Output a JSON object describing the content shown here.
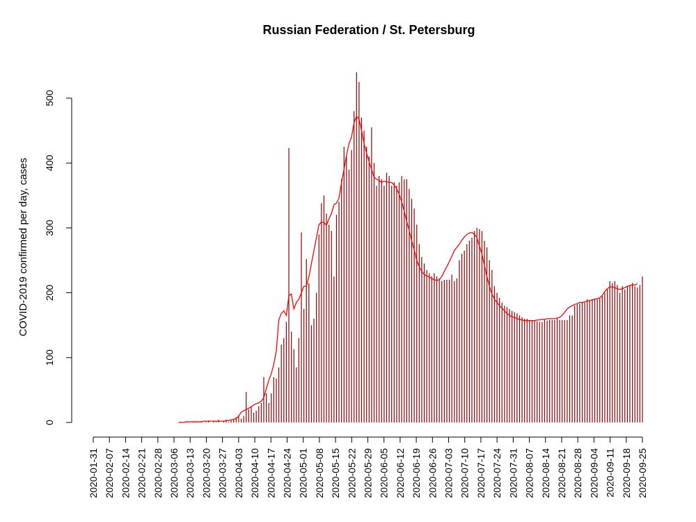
{
  "chart_data": {
    "type": "bar",
    "title": "Russian Federation / St. Petersburg",
    "xlabel": "",
    "ylabel": "COVID-2019 confirmed per day, cases",
    "ylim": [
      0,
      560
    ],
    "y_ticks": [
      0,
      100,
      200,
      300,
      400,
      500
    ],
    "x_start": "2020-01-31",
    "x_end": "2020-09-25",
    "x_tick_labels": [
      "2020-01-31",
      "2020-02-07",
      "2020-02-14",
      "2020-02-21",
      "2020-02-28",
      "2020-03-06",
      "2020-03-13",
      "2020-03-20",
      "2020-03-27",
      "2020-04-03",
      "2020-04-10",
      "2020-04-17",
      "2020-04-24",
      "2020-05-01",
      "2020-05-08",
      "2020-05-15",
      "2020-05-22",
      "2020-05-29",
      "2020-06-05",
      "2020-06-12",
      "2020-06-19",
      "2020-06-26",
      "2020-07-03",
      "2020-07-10",
      "2020-07-17",
      "2020-07-24",
      "2020-07-31",
      "2020-08-07",
      "2020-08-14",
      "2020-08-21",
      "2020-08-28",
      "2020-09-04",
      "2020-09-11",
      "2020-09-18",
      "2020-09-25"
    ],
    "series": [
      {
        "type": "bar",
        "color": "#8b0000",
        "values": [
          0,
          0,
          0,
          0,
          0,
          0,
          0,
          0,
          0,
          0,
          0,
          0,
          0,
          0,
          0,
          0,
          0,
          0,
          0,
          0,
          0,
          0,
          0,
          0,
          0,
          0,
          0,
          0,
          0,
          0,
          0,
          0,
          0,
          0,
          0,
          1,
          0,
          0,
          0,
          0,
          1,
          1,
          0,
          2,
          0,
          1,
          3,
          0,
          2,
          1,
          4,
          0,
          2,
          4,
          1,
          3,
          5,
          8,
          10,
          6,
          10,
          47,
          20,
          25,
          15,
          18,
          25,
          30,
          70,
          45,
          30,
          45,
          70,
          68,
          85,
          120,
          130,
          155,
          423,
          140,
          113,
          85,
          130,
          293,
          175,
          252,
          215,
          150,
          160,
          200,
          290,
          338,
          350,
          322,
          305,
          295,
          225,
          320,
          340,
          375,
          425,
          410,
          390,
          420,
          480,
          540,
          525,
          470,
          450,
          425,
          410,
          455,
          400,
          365,
          380,
          375,
          365,
          385,
          380,
          365,
          370,
          365,
          370,
          380,
          375,
          375,
          360,
          345,
          330,
          305,
          275,
          255,
          245,
          235,
          230,
          225,
          230,
          225,
          222,
          218,
          220,
          220,
          220,
          228,
          218,
          222,
          250,
          260,
          265,
          275,
          280,
          285,
          295,
          300,
          298,
          295,
          280,
          270,
          250,
          235,
          210,
          200,
          192,
          185,
          180,
          178,
          175,
          172,
          170,
          168,
          165,
          162,
          160,
          160,
          158,
          157,
          157,
          156,
          155,
          155,
          158,
          157,
          158,
          158,
          158,
          160,
          158,
          158,
          158,
          158,
          165,
          165,
          180,
          182,
          183,
          185,
          185,
          190,
          188,
          190,
          190,
          190,
          192,
          195,
          200,
          205,
          218,
          215,
          218,
          212,
          200,
          210,
          205,
          210,
          212,
          215,
          210,
          208,
          212,
          225
        ]
      },
      {
        "type": "line",
        "color": "#ff0000",
        "values": [
          null,
          null,
          null,
          null,
          null,
          null,
          null,
          null,
          null,
          null,
          null,
          null,
          null,
          null,
          null,
          null,
          null,
          null,
          null,
          null,
          null,
          null,
          null,
          null,
          null,
          null,
          null,
          null,
          null,
          null,
          null,
          null,
          null,
          null,
          0,
          0,
          0,
          1,
          1,
          1,
          1,
          1,
          1,
          1,
          2,
          2,
          2,
          2,
          2,
          2,
          2,
          2,
          2,
          3,
          3,
          4,
          5,
          6,
          10,
          16,
          18,
          20,
          22,
          24,
          27,
          29,
          30,
          33,
          38,
          52,
          65,
          75,
          90,
          110,
          158,
          168,
          172,
          165,
          195,
          198,
          175,
          185,
          190,
          200,
          210,
          210,
          225,
          245,
          265,
          285,
          305,
          309,
          308,
          304,
          314,
          322,
          336,
          338,
          346,
          370,
          390,
          412,
          430,
          440,
          462,
          472,
          468,
          450,
          430,
          415,
          402,
          390,
          378,
          375,
          373,
          370,
          372,
          371,
          370,
          370,
          366,
          360,
          352,
          340,
          326,
          310,
          296,
          280,
          266,
          250,
          240,
          233,
          228,
          226,
          224,
          222,
          220,
          219,
          220,
          225,
          233,
          240,
          248,
          256,
          265,
          270,
          275,
          281,
          286,
          290,
          292,
          293,
          290,
          285,
          272,
          260,
          242,
          225,
          210,
          198,
          190,
          185,
          180,
          176,
          172,
          168,
          165,
          163,
          162,
          160,
          159,
          158,
          157,
          157,
          157,
          157,
          157,
          158,
          158,
          159,
          159,
          160,
          160,
          160,
          160,
          161,
          162,
          165,
          170,
          175,
          178,
          180,
          182,
          183,
          185,
          185,
          186,
          187,
          188,
          189,
          190,
          191,
          192,
          196,
          202,
          206,
          209,
          209,
          208,
          206,
          205,
          206,
          208,
          210,
          211,
          212,
          212,
          214
        ]
      }
    ],
    "grid": false,
    "legend": "none"
  }
}
